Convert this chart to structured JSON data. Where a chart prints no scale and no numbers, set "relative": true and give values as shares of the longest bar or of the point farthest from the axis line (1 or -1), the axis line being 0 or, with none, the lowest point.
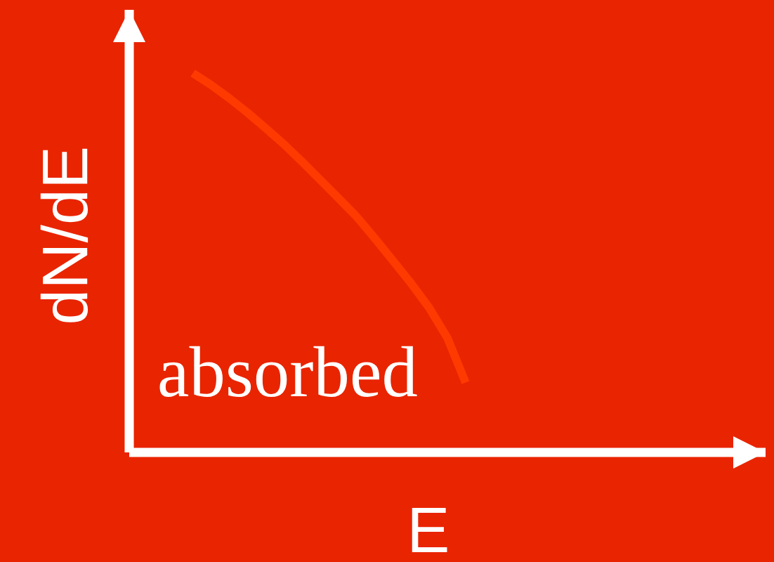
{
  "chart_data": {
    "type": "line",
    "xlabel": "E",
    "ylabel": "dN/dE",
    "annotations": [
      "absorbed"
    ],
    "categories": [
      null,
      null,
      null,
      null,
      null,
      null,
      null,
      null,
      null,
      null,
      null,
      null,
      null,
      null,
      null,
      null,
      null,
      null,
      null,
      null,
      null,
      null,
      null,
      null,
      null,
      null,
      null,
      null,
      null,
      null,
      null,
      null,
      null,
      null,
      null
    ],
    "relative": true,
    "series": [
      {
        "color": "#ff3a00",
        "values": [
          null,
          null,
          null,
          1.0,
          0.969,
          0.934,
          0.896,
          0.855,
          0.813,
          0.767,
          0.719,
          0.671,
          0.622,
          0.565,
          0.506,
          0.446,
          0.381,
          0.302,
          0.184,
          null,
          null,
          null,
          null,
          null,
          null,
          null,
          null,
          null,
          null,
          null,
          null,
          null,
          null,
          null,
          null
        ]
      }
    ]
  }
}
